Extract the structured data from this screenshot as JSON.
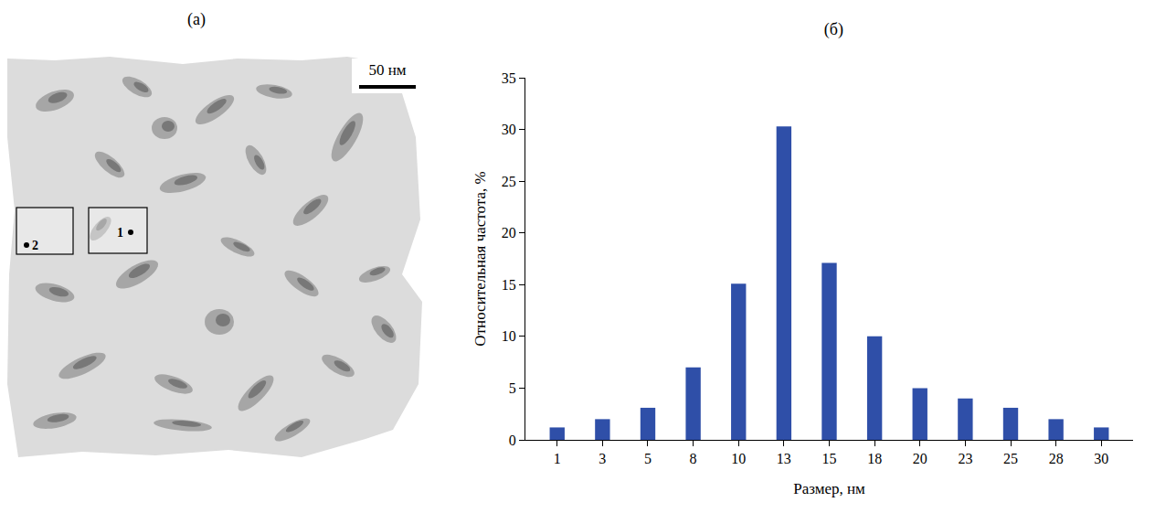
{
  "image_panel": {
    "label": "(а)",
    "scale_bar": "50 нм",
    "markers": [
      "1",
      "2"
    ]
  },
  "chart_data": {
    "type": "bar",
    "title": "(б)",
    "x_label": "Размер, нм",
    "y_label": "Относительная частота, %",
    "categories": [
      "1",
      "3",
      "5",
      "8",
      "10",
      "13",
      "15",
      "18",
      "20",
      "23",
      "25",
      "28",
      "30"
    ],
    "values": [
      1.2,
      2,
      3.1,
      7,
      15.1,
      30.3,
      17.1,
      10,
      5,
      4,
      3.1,
      2,
      1.2
    ],
    "color": "#2f4fa8",
    "ylim": [
      0,
      35
    ],
    "yticks": [
      0,
      5,
      10,
      15,
      20,
      25,
      30,
      35
    ],
    "grid": false
  }
}
